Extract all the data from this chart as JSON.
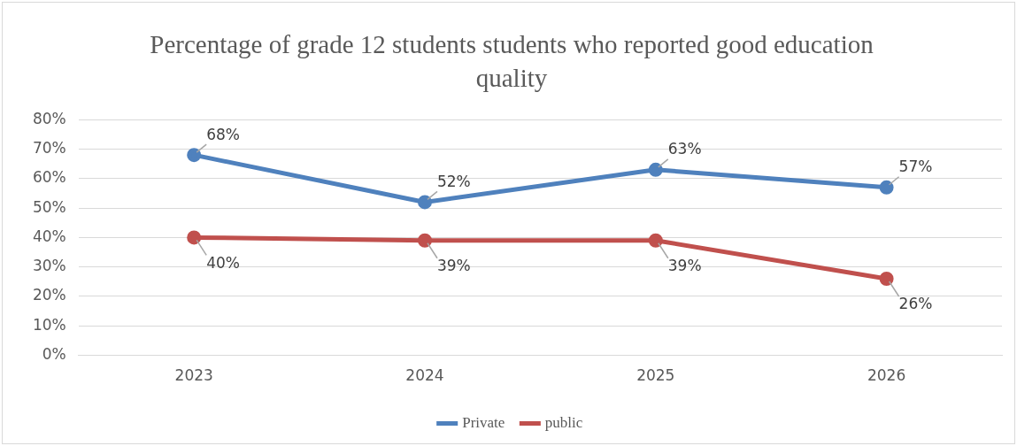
{
  "chart_data": {
    "type": "line",
    "title": "Percentage of grade 12 students students who reported good education quality",
    "categories": [
      "2023",
      "2024",
      "2025",
      "2026"
    ],
    "series": [
      {
        "name": "Private",
        "color": "#4f81bd",
        "values": [
          68,
          52,
          63,
          57
        ],
        "value_labels": [
          "68%",
          "52%",
          "63%",
          "57%"
        ]
      },
      {
        "name": "public",
        "color": "#c0504d",
        "values": [
          40,
          39,
          39,
          26
        ],
        "value_labels": [
          "40%",
          "39%",
          "39%",
          "26%"
        ]
      }
    ],
    "ylim": [
      0,
      80
    ],
    "yticks": [
      {
        "value": 0,
        "label": "0%"
      },
      {
        "value": 10,
        "label": "10%"
      },
      {
        "value": 20,
        "label": "20%"
      },
      {
        "value": 30,
        "label": "30%"
      },
      {
        "value": 40,
        "label": "40%"
      },
      {
        "value": 50,
        "label": "50%"
      },
      {
        "value": 60,
        "label": "60%"
      },
      {
        "value": 70,
        "label": "70%"
      },
      {
        "value": 80,
        "label": "80%"
      }
    ],
    "grid": "y",
    "legend": "bottom",
    "marker": "circle",
    "line_style": "solid"
  }
}
